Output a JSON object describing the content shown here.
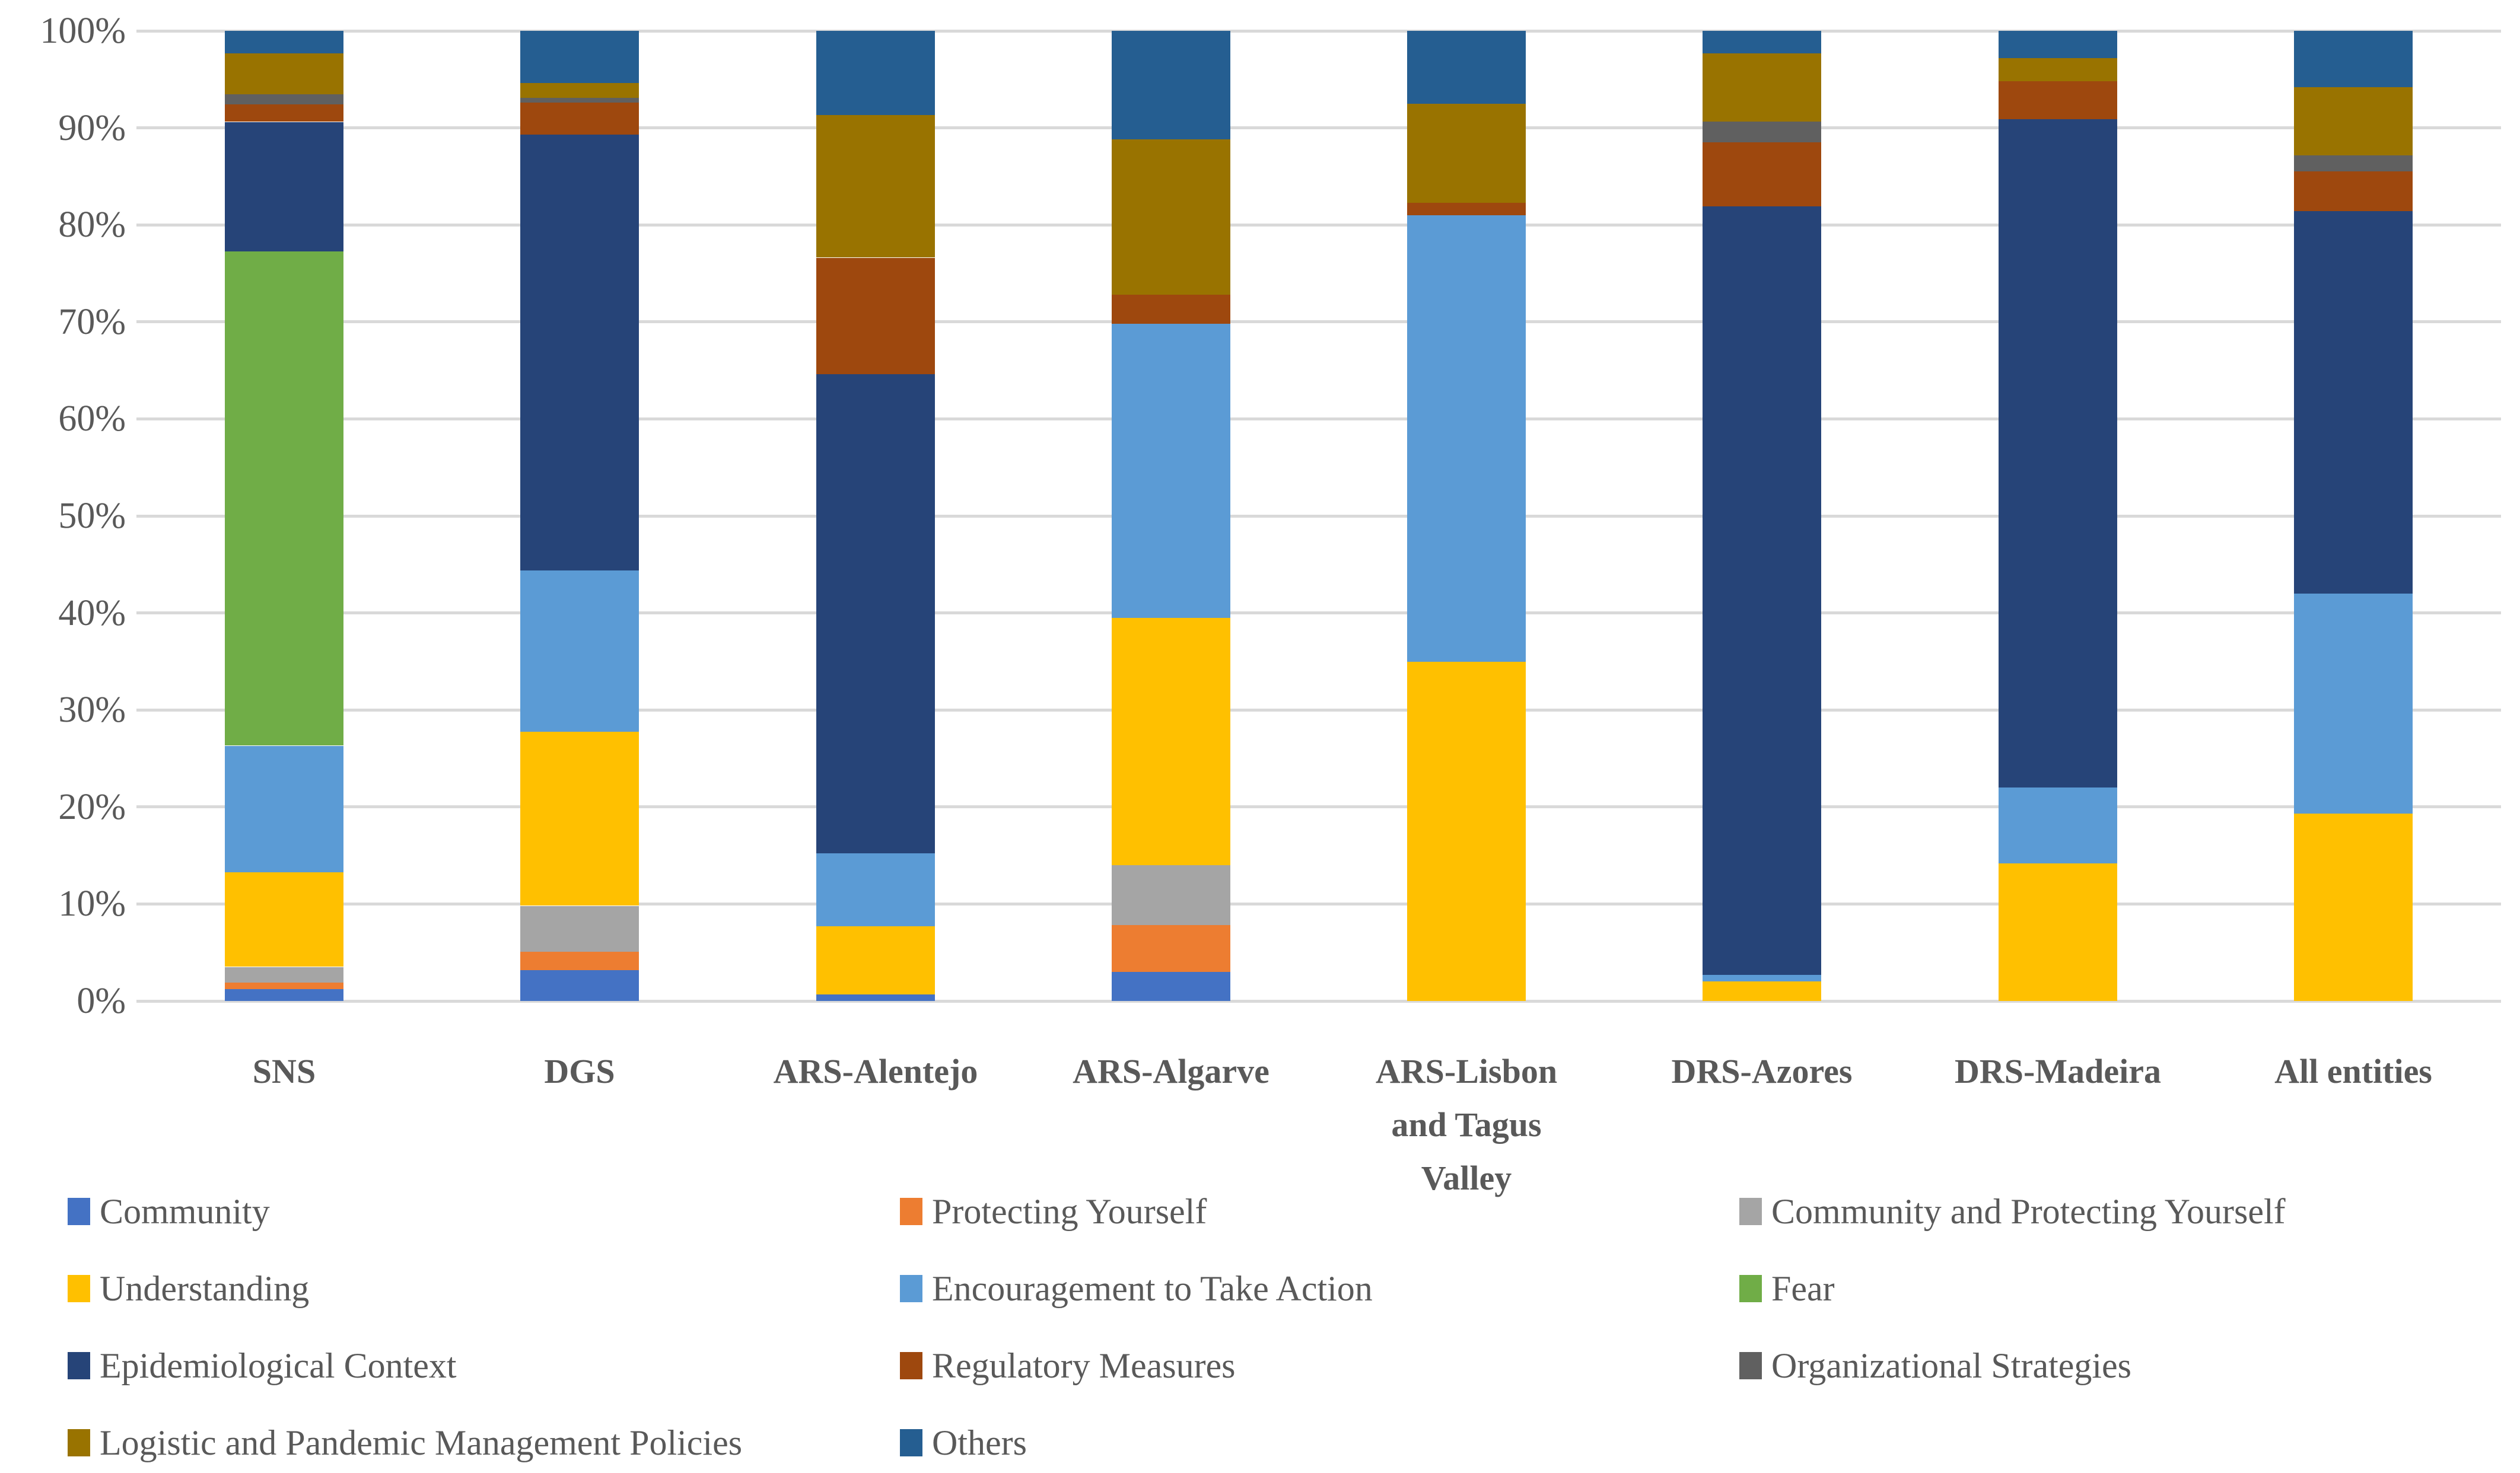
{
  "chart_data": {
    "type": "bar",
    "stacked": true,
    "units": "percent",
    "title": "",
    "categories": [
      "SNS",
      "DGS",
      "ARS-Alentejo",
      "ARS-Algarve",
      "ARS-Lisbon\nand Tagus\nValley",
      "DRS-Azores",
      "DRS-Madeira",
      "All entities"
    ],
    "series": [
      {
        "name": "Community",
        "color": "#4472C4",
        "values": [
          1.2,
          3.2,
          0.7,
          3.0,
          0,
          0,
          0,
          0
        ]
      },
      {
        "name": "Protecting Yourself",
        "color": "#ED7D31",
        "values": [
          0.7,
          1.9,
          0,
          4.8,
          0,
          0,
          0,
          0
        ]
      },
      {
        "name": "Community and Protecting Yourself",
        "color": "#A5A5A5",
        "values": [
          1.6,
          4.7,
          0,
          6.2,
          0,
          0,
          0,
          0
        ]
      },
      {
        "name": "Understanding",
        "color": "#FFC000",
        "values": [
          9.8,
          18.0,
          7.0,
          25.5,
          35.0,
          2.0,
          14.2,
          19.3
        ]
      },
      {
        "name": "Encouragement to Take Action",
        "color": "#5B9BD5",
        "values": [
          13.0,
          16.6,
          7.5,
          30.3,
          46.0,
          0.7,
          7.8,
          22.7
        ]
      },
      {
        "name": "Fear",
        "color": "#70AD47",
        "values": [
          51.0,
          0,
          0,
          0,
          0,
          0,
          0,
          0
        ]
      },
      {
        "name": "Epidemiological Context",
        "color": "#264478",
        "values": [
          13.3,
          44.9,
          49.4,
          0,
          0,
          79.2,
          68.9,
          39.4
        ]
      },
      {
        "name": "Regulatory Measures",
        "color": "#9E480E",
        "values": [
          1.8,
          3.3,
          12.0,
          3.0,
          1.3,
          6.6,
          3.9,
          4.1
        ]
      },
      {
        "name": "Organizational Strategies",
        "color": "#606060",
        "values": [
          1.1,
          0.5,
          0,
          0,
          0,
          2.2,
          0,
          1.7
        ]
      },
      {
        "name": "Logistic and Pandemic Management Policies",
        "color": "#997300",
        "values": [
          4.2,
          1.5,
          14.7,
          16.0,
          10.2,
          7.0,
          2.4,
          7.0
        ]
      },
      {
        "name": "Others",
        "color": "#255E91",
        "values": [
          2.3,
          5.4,
          8.7,
          11.2,
          7.5,
          2.3,
          2.8,
          5.8
        ]
      }
    ],
    "y_axis": {
      "min": 0,
      "max": 100,
      "tick_step": 10,
      "tick_labels": [
        "0%",
        "10%",
        "20%",
        "30%",
        "40%",
        "50%",
        "60%",
        "70%",
        "80%",
        "90%",
        "100%"
      ],
      "gridlines": true
    },
    "legend": {
      "position": "bottom",
      "columns": 3
    },
    "colors": {
      "gridline": "#D9D9D9",
      "text": "#595959",
      "background": "#FFFFFF"
    }
  }
}
